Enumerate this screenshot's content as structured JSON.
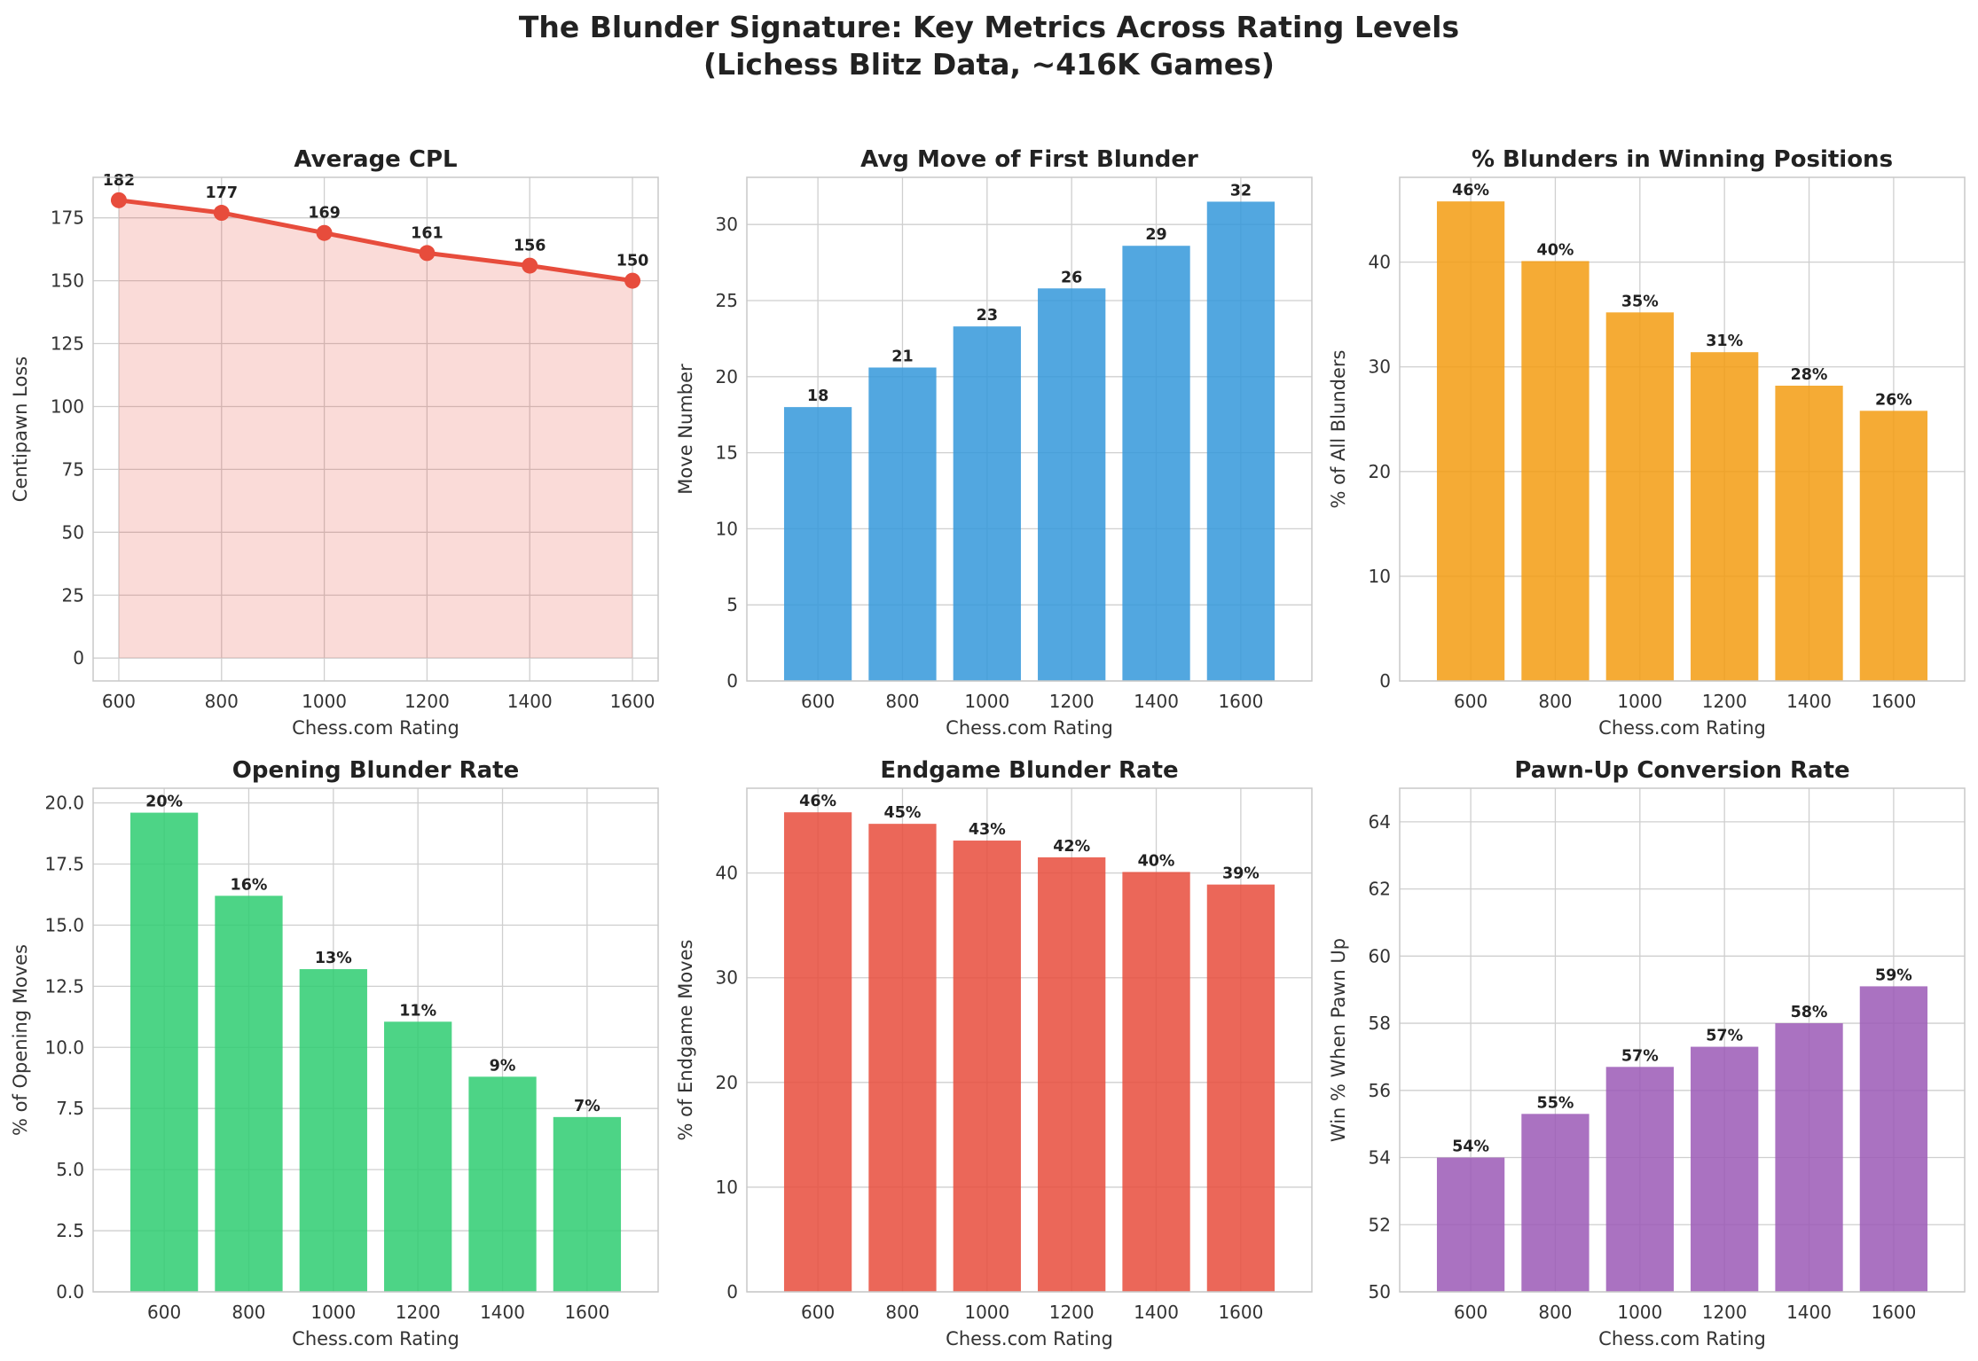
{
  "figure": {
    "title_line1": "The Blunder Signature: Key Metrics Across Rating Levels",
    "title_line2": "(Lichess Blitz Data, ~416K Games)"
  },
  "chart_data": [
    {
      "type": "area",
      "title": "Average CPL",
      "xlabel": "Chess.com Rating",
      "ylabel": "Centipawn Loss",
      "x": [
        600,
        800,
        1000,
        1200,
        1400,
        1600
      ],
      "values": [
        182,
        177,
        169,
        161,
        156,
        150
      ],
      "labels": [
        "182",
        "177",
        "169",
        "161",
        "156",
        "150"
      ],
      "xlim": [
        550,
        1650
      ],
      "ylim": [
        -9.1,
        191.1
      ],
      "yticks": [
        0,
        25,
        50,
        75,
        100,
        125,
        150,
        175
      ],
      "ytick_labels": [
        "0",
        "25",
        "50",
        "75",
        "100",
        "125",
        "150",
        "175"
      ],
      "xticks": [
        600,
        800,
        1000,
        1200,
        1400,
        1600
      ],
      "xtick_labels": [
        "600",
        "800",
        "1000",
        "1200",
        "1400",
        "1600"
      ],
      "color": "#e74c3c",
      "grid": true
    },
    {
      "type": "bar",
      "title": "Avg Move of First Blunder",
      "xlabel": "Chess.com Rating",
      "ylabel": "Move Number",
      "categories": [
        "600",
        "800",
        "1000",
        "1200",
        "1400",
        "1600"
      ],
      "values": [
        18,
        20.6,
        23.3,
        25.8,
        28.6,
        31.5
      ],
      "labels": [
        "18",
        "21",
        "23",
        "26",
        "29",
        "32"
      ],
      "ylim": [
        0,
        33.1
      ],
      "yticks": [
        0,
        5,
        10,
        15,
        20,
        25,
        30
      ],
      "ytick_labels": [
        "0",
        "5",
        "10",
        "15",
        "20",
        "25",
        "30"
      ],
      "color": "#3498db",
      "grid": true
    },
    {
      "type": "bar",
      "title": "% Blunders in Winning Positions",
      "xlabel": "Chess.com Rating",
      "ylabel": "% of All Blunders",
      "categories": [
        "600",
        "800",
        "1000",
        "1200",
        "1400",
        "1600"
      ],
      "values": [
        45.8,
        40.1,
        35.2,
        31.4,
        28.2,
        25.8
      ],
      "labels": [
        "46%",
        "40%",
        "35%",
        "31%",
        "28%",
        "26%"
      ],
      "ylim": [
        0,
        48.1
      ],
      "yticks": [
        0,
        10,
        20,
        30,
        40
      ],
      "ytick_labels": [
        "0",
        "10",
        "20",
        "30",
        "40"
      ],
      "color": "#f39c12",
      "grid": true
    },
    {
      "type": "bar",
      "title": "Opening Blunder Rate",
      "xlabel": "Chess.com Rating",
      "ylabel": "% of Opening Moves",
      "categories": [
        "600",
        "800",
        "1000",
        "1200",
        "1400",
        "1600"
      ],
      "values": [
        19.6,
        16.2,
        13.2,
        11.05,
        8.8,
        7.15
      ],
      "labels": [
        "20%",
        "16%",
        "13%",
        "11%",
        "9%",
        "7%"
      ],
      "ylim": [
        0,
        20.6
      ],
      "yticks": [
        0,
        2.5,
        5,
        7.5,
        10,
        12.5,
        15,
        17.5,
        20
      ],
      "ytick_labels": [
        "0.0",
        "2.5",
        "5.0",
        "7.5",
        "10.0",
        "12.5",
        "15.0",
        "17.5",
        "20.0"
      ],
      "color": "#2ecc71",
      "grid": true
    },
    {
      "type": "bar",
      "title": "Endgame Blunder Rate",
      "xlabel": "Chess.com Rating",
      "ylabel": "% of Endgame Moves",
      "categories": [
        "600",
        "800",
        "1000",
        "1200",
        "1400",
        "1600"
      ],
      "values": [
        45.8,
        44.7,
        43.1,
        41.5,
        40.1,
        38.9
      ],
      "labels": [
        "46%",
        "45%",
        "43%",
        "42%",
        "40%",
        "39%"
      ],
      "ylim": [
        0,
        48.1
      ],
      "yticks": [
        0,
        10,
        20,
        30,
        40
      ],
      "ytick_labels": [
        "0",
        "10",
        "20",
        "30",
        "40"
      ],
      "color": "#e74c3c",
      "grid": true
    },
    {
      "type": "bar",
      "title": "Pawn-Up Conversion Rate",
      "xlabel": "Chess.com Rating",
      "ylabel": "Win % When Pawn Up",
      "categories": [
        "600",
        "800",
        "1000",
        "1200",
        "1400",
        "1600"
      ],
      "values": [
        54.0,
        55.3,
        56.7,
        57.3,
        58.0,
        59.1
      ],
      "labels": [
        "54%",
        "55%",
        "57%",
        "57%",
        "58%",
        "59%"
      ],
      "ylim": [
        50,
        65
      ],
      "yticks": [
        50,
        52,
        54,
        56,
        58,
        60,
        62,
        64
      ],
      "ytick_labels": [
        "50",
        "52",
        "54",
        "56",
        "58",
        "60",
        "62",
        "64"
      ],
      "color": "#9b59b6",
      "grid": true
    }
  ]
}
